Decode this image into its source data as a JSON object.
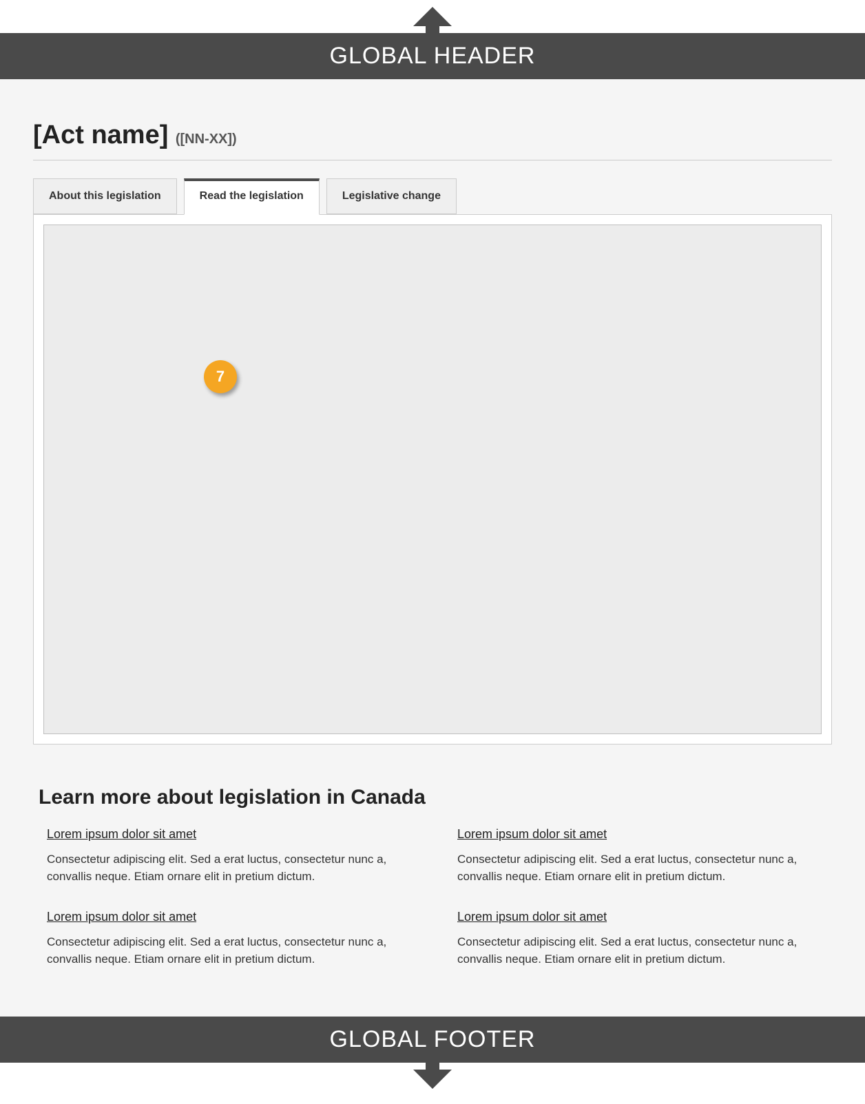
{
  "header": {
    "label": "GLOBAL HEADER"
  },
  "footer": {
    "label": "GLOBAL FOOTER"
  },
  "title": {
    "act_name": "[Act name]",
    "act_code": "([NN-XX])"
  },
  "tabs": {
    "items": [
      {
        "label": "About this legislation",
        "active": false
      },
      {
        "label": "Read the legislation",
        "active": true
      },
      {
        "label": "Legislative change",
        "active": false
      }
    ]
  },
  "annotation": {
    "badge_number": "7",
    "badge_color": "#f5a623"
  },
  "learn_more": {
    "heading": "Learn more about legislation in Canada",
    "links": [
      {
        "title": "Lorem ipsum dolor sit amet",
        "desc": "Consectetur adipiscing elit. Sed a erat luctus, consectetur nunc a, convallis neque. Etiam ornare elit in pretium dictum."
      },
      {
        "title": "Lorem ipsum dolor sit amet",
        "desc": "Consectetur adipiscing elit. Sed a erat luctus, consectetur nunc a, convallis neque. Etiam ornare elit in pretium dictum."
      },
      {
        "title": "Lorem ipsum dolor sit amet",
        "desc": "Consectetur adipiscing elit. Sed a erat luctus, consectetur nunc a, convallis neque. Etiam ornare elit in pretium dictum."
      },
      {
        "title": "Lorem ipsum dolor sit amet",
        "desc": "Consectetur adipiscing elit. Sed a erat luctus, consectetur nunc a, convallis neque. Etiam ornare elit in pretium dictum."
      }
    ]
  },
  "colors": {
    "header_bg": "#4a4a4a",
    "page_bg": "#f5f5f5",
    "placeholder_bg": "#ececec",
    "border": "#cccccc"
  }
}
